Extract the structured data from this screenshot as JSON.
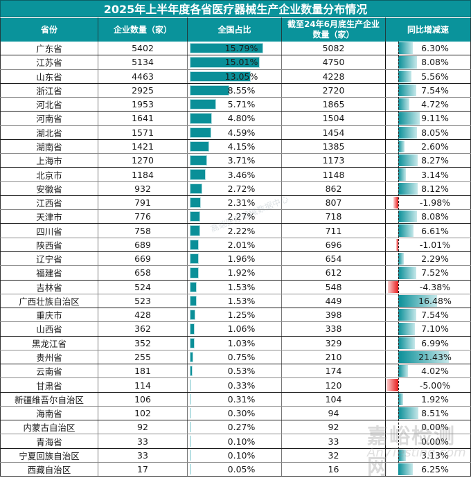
{
  "title": "2025年上半年度各省医疗器械生产企业数量分布情况",
  "headers": {
    "province": "省份",
    "count": "企业数量（家）",
    "share": "全国占比",
    "prev": "截至24年6月底生产企业数量（家）",
    "growth": "同比增减速"
  },
  "watermarks": {
    "center": "高端医疗器械数据中心",
    "corner_cn": "嘉峪检测网",
    "corner_en": "AnyTesting.com"
  },
  "colors": {
    "header_bg": "#0a939b",
    "share_bar": "#0a8f98",
    "growth_positive": "#0a8f98",
    "growth_negative": "#e81c1c"
  },
  "rows": [
    {
      "province": "广东省",
      "count": "5402",
      "share": "15.79%",
      "prev": "5082",
      "growth": "6.30%"
    },
    {
      "province": "江苏省",
      "count": "5134",
      "share": "15.01%",
      "prev": "4750",
      "growth": "8.08%"
    },
    {
      "province": "山东省",
      "count": "4463",
      "share": "13.05%",
      "prev": "4228",
      "growth": "5.56%"
    },
    {
      "province": "浙江省",
      "count": "2925",
      "share": "8.55%",
      "prev": "2720",
      "growth": "7.54%"
    },
    {
      "province": "河北省",
      "count": "1953",
      "share": "5.71%",
      "prev": "1865",
      "growth": "4.72%"
    },
    {
      "province": "河南省",
      "count": "1641",
      "share": "4.80%",
      "prev": "1504",
      "growth": "9.11%"
    },
    {
      "province": "湖北省",
      "count": "1571",
      "share": "4.59%",
      "prev": "1454",
      "growth": "8.05%"
    },
    {
      "province": "湖南省",
      "count": "1421",
      "share": "4.15%",
      "prev": "1385",
      "growth": "2.60%"
    },
    {
      "province": "上海市",
      "count": "1270",
      "share": "3.71%",
      "prev": "1173",
      "growth": "8.27%"
    },
    {
      "province": "北京市",
      "count": "1184",
      "share": "3.46%",
      "prev": "1148",
      "growth": "3.14%"
    },
    {
      "province": "安徽省",
      "count": "932",
      "share": "2.72%",
      "prev": "862",
      "growth": "8.12%"
    },
    {
      "province": "江西省",
      "count": "791",
      "share": "2.31%",
      "prev": "807",
      "growth": "-1.98%"
    },
    {
      "province": "天津市",
      "count": "776",
      "share": "2.27%",
      "prev": "718",
      "growth": "8.08%"
    },
    {
      "province": "四川省",
      "count": "758",
      "share": "2.22%",
      "prev": "711",
      "growth": "6.61%"
    },
    {
      "province": "陕西省",
      "count": "689",
      "share": "2.01%",
      "prev": "696",
      "growth": "-1.01%"
    },
    {
      "province": "辽宁省",
      "count": "669",
      "share": "1.96%",
      "prev": "654",
      "growth": "2.29%"
    },
    {
      "province": "福建省",
      "count": "658",
      "share": "1.92%",
      "prev": "612",
      "growth": "7.52%"
    },
    {
      "province": "吉林省",
      "count": "524",
      "share": "1.53%",
      "prev": "548",
      "growth": "-4.38%"
    },
    {
      "province": "广西壮族自治区",
      "count": "523",
      "share": "1.53%",
      "prev": "449",
      "growth": "16.48%"
    },
    {
      "province": "重庆市",
      "count": "428",
      "share": "1.25%",
      "prev": "398",
      "growth": "7.54%"
    },
    {
      "province": "山西省",
      "count": "362",
      "share": "1.06%",
      "prev": "338",
      "growth": "7.10%"
    },
    {
      "province": "黑龙江省",
      "count": "352",
      "share": "1.03%",
      "prev": "329",
      "growth": "6.99%"
    },
    {
      "province": "贵州省",
      "count": "255",
      "share": "0.75%",
      "prev": "210",
      "growth": "21.43%"
    },
    {
      "province": "云南省",
      "count": "181",
      "share": "0.53%",
      "prev": "174",
      "growth": "4.02%"
    },
    {
      "province": "甘肃省",
      "count": "114",
      "share": "0.33%",
      "prev": "120",
      "growth": "-5.00%"
    },
    {
      "province": "新疆维吾尔自治区",
      "count": "106",
      "share": "0.31%",
      "prev": "104",
      "growth": "1.92%"
    },
    {
      "province": "海南省",
      "count": "102",
      "share": "0.30%",
      "prev": "94",
      "growth": "8.51%"
    },
    {
      "province": "内蒙古自治区",
      "count": "92",
      "share": "0.27%",
      "prev": "92",
      "growth": "0.00%"
    },
    {
      "province": "青海省",
      "count": "33",
      "share": "0.10%",
      "prev": "33",
      "growth": "0.00%"
    },
    {
      "province": "宁夏回族自治区",
      "count": "33",
      "share": "0.10%",
      "prev": "32",
      "growth": "3.13%"
    },
    {
      "province": "西藏自治区",
      "count": "17",
      "share": "0.05%",
      "prev": "16",
      "growth": "6.25%"
    }
  ],
  "chart_data": {
    "type": "table",
    "title": "2025年上半年度各省医疗器械生产企业数量分布情况",
    "columns": [
      "省份",
      "企业数量（家）",
      "全国占比",
      "截至24年6月底生产企业数量（家）",
      "同比增减速"
    ],
    "categories": [
      "广东省",
      "江苏省",
      "山东省",
      "浙江省",
      "河北省",
      "河南省",
      "湖北省",
      "湖南省",
      "上海市",
      "北京市",
      "安徽省",
      "江西省",
      "天津市",
      "四川省",
      "陕西省",
      "辽宁省",
      "福建省",
      "吉林省",
      "广西壮族自治区",
      "重庆市",
      "山西省",
      "黑龙江省",
      "贵州省",
      "云南省",
      "甘肃省",
      "新疆维吾尔自治区",
      "海南省",
      "内蒙古自治区",
      "青海省",
      "宁夏回族自治区",
      "西藏自治区"
    ],
    "series": [
      {
        "name": "企业数量（家）",
        "values": [
          5402,
          5134,
          4463,
          2925,
          1953,
          1641,
          1571,
          1421,
          1270,
          1184,
          932,
          791,
          776,
          758,
          689,
          669,
          658,
          524,
          523,
          428,
          362,
          352,
          255,
          181,
          114,
          106,
          102,
          92,
          33,
          33,
          17
        ]
      },
      {
        "name": "全国占比(%)",
        "values": [
          15.79,
          15.01,
          13.05,
          8.55,
          5.71,
          4.8,
          4.59,
          4.15,
          3.71,
          3.46,
          2.72,
          2.31,
          2.27,
          2.22,
          2.01,
          1.96,
          1.92,
          1.53,
          1.53,
          1.25,
          1.06,
          1.03,
          0.75,
          0.53,
          0.33,
          0.31,
          0.3,
          0.27,
          0.1,
          0.1,
          0.05
        ]
      },
      {
        "name": "截至24年6月底生产企业数量（家）",
        "values": [
          5082,
          4750,
          4228,
          2720,
          1865,
          1504,
          1454,
          1385,
          1173,
          1148,
          862,
          807,
          718,
          711,
          696,
          654,
          612,
          548,
          449,
          398,
          338,
          329,
          210,
          174,
          120,
          104,
          94,
          92,
          33,
          32,
          16
        ]
      },
      {
        "name": "同比增减速(%)",
        "values": [
          6.3,
          8.08,
          5.56,
          7.54,
          4.72,
          9.11,
          8.05,
          2.6,
          8.27,
          3.14,
          8.12,
          -1.98,
          8.08,
          6.61,
          -1.01,
          2.29,
          7.52,
          -4.38,
          16.48,
          7.54,
          7.1,
          6.99,
          21.43,
          4.02,
          -5.0,
          1.92,
          8.51,
          0.0,
          0.0,
          3.13,
          6.25
        ]
      }
    ],
    "share_bar_max_pct": 15.79,
    "growth_range": [
      -5.0,
      21.43
    ]
  }
}
